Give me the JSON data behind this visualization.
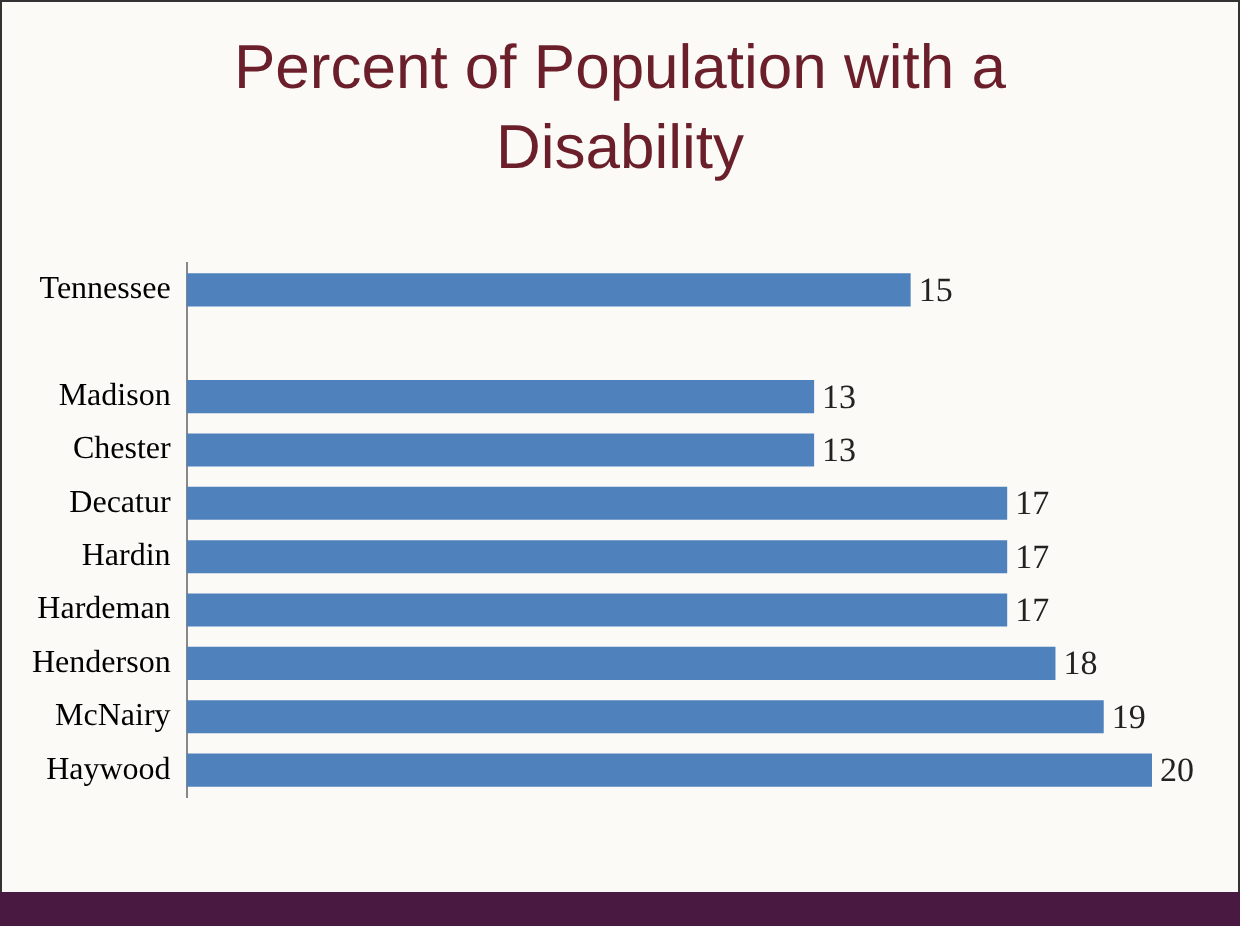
{
  "chart_data": {
    "type": "bar",
    "orientation": "horizontal",
    "title": "Percent of Population with a Disability",
    "categories": [
      "Tennessee",
      null,
      "Madison",
      "Chester",
      "Decatur",
      "Hardin",
      "Hardeman",
      "Henderson",
      "McNairy",
      "Haywood"
    ],
    "values": [
      15,
      null,
      13,
      13,
      17,
      17,
      17,
      18,
      19,
      20
    ],
    "color": "#4f81bd",
    "data_labels": true,
    "legend": false
  }
}
